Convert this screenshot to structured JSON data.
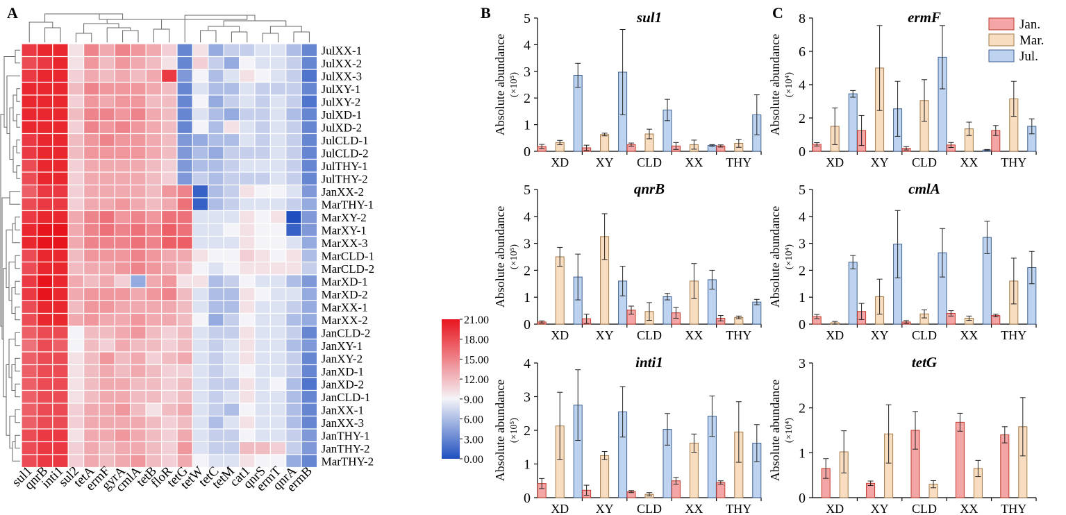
{
  "panel_labels": {
    "a": "A",
    "b": "B",
    "c": "C"
  },
  "colors": {
    "jan_fill": "#f4a6a6",
    "mar_fill": "#f9ddc0",
    "jul_fill": "#bdd3ef",
    "heat_low": "#1f4fbf",
    "heat_mid": "#f4f4f8",
    "heat_high": "#e8141d"
  },
  "legend": [
    "Jan.",
    "Mar.",
    "Jul."
  ],
  "chart_data": [
    {
      "type": "heatmap",
      "panel": "A",
      "columns": [
        "sul1",
        "qnrB",
        "inti1",
        "sul2",
        "tetA",
        "ermF",
        "gyrA",
        "cmlA",
        "tetB",
        "floR",
        "tetG",
        "tetW",
        "tetC",
        "tetM",
        "cat1",
        "qnrS",
        "ermT",
        "qnrA",
        "ermB"
      ],
      "rows": [
        "JulXX-1",
        "JulXX-2",
        "JulXX-3",
        "JulXY-1",
        "JulXY-2",
        "JulXD-1",
        "JulXD-2",
        "JulCLD-1",
        "JulCLD-2",
        "JulTHY-1",
        "JulTHY-2",
        "JanXX-2",
        "MarTHY-1",
        "MarXY-2",
        "MarXY-1",
        "MarXX-3",
        "MarCLD-1",
        "MarCLD-2",
        "MarXD-1",
        "MarXD-2",
        "MarXX-1",
        "MarXX-2",
        "JanCLD-2",
        "JanXY-1",
        "JanXY-2",
        "JanXD-1",
        "JanXD-2",
        "JanCLD-1",
        "JanXX-1",
        "JanXX-3",
        "JanTHY-1",
        "JanTHY-2",
        "MarTHY-2"
      ],
      "values": [
        [
          19,
          20,
          20,
          10,
          15,
          13,
          15,
          14,
          13,
          11,
          3,
          10,
          5,
          7,
          7,
          8,
          8,
          6,
          3
        ],
        [
          18,
          19,
          20,
          10,
          14,
          12,
          14,
          13,
          12,
          10,
          3,
          11,
          7,
          5,
          9,
          8,
          8,
          7,
          3
        ],
        [
          19,
          20,
          20,
          11,
          13,
          12,
          13,
          12,
          13,
          19,
          4,
          9,
          6,
          8,
          10,
          9,
          8,
          7,
          2
        ],
        [
          20,
          20,
          20,
          12,
          15,
          14,
          14,
          14,
          13,
          12,
          3,
          8,
          6,
          6,
          8,
          7,
          7,
          7,
          3
        ],
        [
          20,
          20,
          20,
          11,
          14,
          13,
          14,
          14,
          12,
          12,
          3,
          9,
          5,
          7,
          8,
          7,
          8,
          7,
          2
        ],
        [
          20,
          20,
          20,
          12,
          15,
          15,
          14,
          15,
          13,
          12,
          3,
          8,
          6,
          5,
          7,
          7,
          8,
          6,
          3
        ],
        [
          20,
          20,
          20,
          11,
          15,
          14,
          15,
          14,
          13,
          12,
          3,
          9,
          6,
          10,
          8,
          7,
          8,
          7,
          3
        ],
        [
          19,
          20,
          20,
          12,
          14,
          15,
          14,
          14,
          13,
          12,
          4,
          5,
          6,
          6,
          8,
          7,
          8,
          7,
          3
        ],
        [
          19,
          20,
          20,
          12,
          14,
          14,
          14,
          14,
          13,
          12,
          4,
          6,
          5,
          7,
          7,
          7,
          8,
          7,
          3
        ],
        [
          18,
          20,
          20,
          11,
          13,
          13,
          13,
          13,
          12,
          11,
          4,
          6,
          6,
          7,
          8,
          8,
          8,
          7,
          3
        ],
        [
          18,
          20,
          20,
          11,
          13,
          13,
          13,
          13,
          12,
          11,
          4,
          7,
          6,
          7,
          7,
          7,
          8,
          7,
          3
        ],
        [
          17,
          19,
          19,
          11,
          13,
          13,
          13,
          13,
          12,
          14,
          15,
          1,
          6,
          7,
          10,
          9,
          9,
          8,
          4
        ],
        [
          18,
          19,
          19,
          11,
          13,
          13,
          14,
          13,
          12,
          13,
          16,
          1,
          6,
          7,
          8,
          8,
          8,
          7,
          5
        ],
        [
          19,
          20,
          20,
          13,
          15,
          16,
          14,
          15,
          14,
          16,
          16,
          8,
          8,
          8,
          10,
          9,
          10,
          0,
          4
        ],
        [
          20,
          21,
          21,
          13,
          15,
          16,
          15,
          16,
          15,
          17,
          16,
          8,
          8,
          9,
          10,
          9,
          9,
          1,
          4
        ],
        [
          20,
          21,
          21,
          13,
          15,
          15,
          15,
          16,
          15,
          17,
          17,
          8,
          8,
          8,
          10,
          9,
          9,
          8,
          5
        ],
        [
          18,
          20,
          20,
          12,
          14,
          14,
          14,
          15,
          14,
          13,
          13,
          10,
          9,
          9,
          11,
          10,
          9,
          10,
          6
        ],
        [
          18,
          20,
          20,
          12,
          13,
          13,
          14,
          15,
          14,
          13,
          12,
          9,
          8,
          9,
          10,
          10,
          10,
          10,
          7
        ],
        [
          19,
          21,
          20,
          13,
          12,
          13,
          11,
          5,
          13,
          14,
          10,
          10,
          6,
          7,
          9,
          8,
          8,
          6,
          4
        ],
        [
          19,
          21,
          20,
          13,
          14,
          14,
          14,
          13,
          14,
          15,
          12,
          8,
          6,
          6,
          10,
          9,
          8,
          8,
          5
        ],
        [
          18,
          20,
          20,
          12,
          14,
          14,
          13,
          13,
          13,
          13,
          12,
          8,
          6,
          6,
          10,
          8,
          8,
          7,
          5
        ],
        [
          18,
          20,
          20,
          13,
          14,
          13,
          13,
          14,
          13,
          13,
          12,
          9,
          5,
          7,
          9,
          8,
          8,
          6,
          5
        ],
        [
          17,
          18,
          18,
          9,
          12,
          12,
          13,
          14,
          12,
          11,
          12,
          8,
          7,
          7,
          10,
          8,
          8,
          7,
          3
        ],
        [
          16,
          18,
          17,
          9,
          12,
          11,
          13,
          12,
          12,
          11,
          12,
          8,
          7,
          8,
          10,
          8,
          8,
          6,
          4
        ],
        [
          17,
          18,
          18,
          10,
          12,
          14,
          12,
          13,
          11,
          12,
          13,
          8,
          7,
          8,
          10,
          8,
          8,
          7,
          3
        ],
        [
          17,
          18,
          18,
          10,
          12,
          13,
          12,
          13,
          12,
          11,
          11,
          8,
          7,
          8,
          9,
          8,
          8,
          7,
          3
        ],
        [
          17,
          18,
          18,
          10,
          12,
          13,
          13,
          12,
          12,
          11,
          12,
          8,
          7,
          7,
          10,
          8,
          9,
          6,
          2
        ],
        [
          17,
          18,
          18,
          10,
          12,
          13,
          13,
          12,
          12,
          11,
          12,
          8,
          7,
          8,
          10,
          8,
          8,
          6,
          3
        ],
        [
          17,
          18,
          18,
          11,
          13,
          13,
          14,
          12,
          10,
          12,
          13,
          8,
          7,
          6,
          9,
          8,
          8,
          6,
          3
        ],
        [
          17,
          18,
          18,
          11,
          13,
          13,
          13,
          13,
          12,
          11,
          12,
          8,
          6,
          8,
          10,
          8,
          8,
          6,
          3
        ],
        [
          18,
          19,
          19,
          10,
          13,
          13,
          14,
          13,
          12,
          11,
          13,
          8,
          7,
          7,
          9,
          8,
          8,
          7,
          4
        ],
        [
          18,
          19,
          19,
          11,
          13,
          12,
          13,
          13,
          12,
          11,
          14,
          8,
          7,
          7,
          12,
          12,
          11,
          7,
          4
        ],
        [
          18,
          19,
          19,
          11,
          13,
          12,
          13,
          14,
          12,
          11,
          13,
          9,
          8,
          8,
          10,
          9,
          9,
          5,
          3
        ]
      ],
      "colorbar": {
        "min": 0,
        "max": 21,
        "ticks": [
          "21.00",
          "18.00",
          "15.00",
          "12.00",
          "9.00",
          "6.00",
          "3.00",
          "0.00"
        ]
      }
    },
    {
      "type": "bar",
      "panel": "B",
      "gene": "sul1",
      "categories": [
        "XD",
        "XY",
        "CLD",
        "XX",
        "THY"
      ],
      "ylabel": "Absolute abundance",
      "unit": "(×10⁵)",
      "ylim": [
        0,
        5
      ],
      "yticks": [
        "0",
        "1",
        "2",
        "3",
        "4",
        "5"
      ],
      "series": [
        {
          "name": "Jan.",
          "values": [
            0.18,
            0.13,
            0.25,
            0.2,
            0.2
          ],
          "errors": [
            0.08,
            0.1,
            0.06,
            0.13,
            0.04
          ]
        },
        {
          "name": "Mar.",
          "values": [
            0.33,
            0.63,
            0.65,
            0.25,
            0.3
          ],
          "errors": [
            0.08,
            0.05,
            0.18,
            0.17,
            0.15
          ]
        },
        {
          "name": "Jul.",
          "values": [
            2.85,
            2.97,
            1.55,
            0.22,
            1.37
          ],
          "errors": [
            0.45,
            1.6,
            0.4,
            0.03,
            0.75
          ]
        }
      ]
    },
    {
      "type": "bar",
      "panel": "C",
      "gene": "ermF",
      "categories": [
        "XD",
        "XY",
        "CLD",
        "XX",
        "THY"
      ],
      "ylabel": "Absolute abundance",
      "unit": "(×10⁴)",
      "ylim": [
        0,
        8
      ],
      "yticks": [
        "0",
        "2",
        "4",
        "6",
        "8"
      ],
      "series": [
        {
          "name": "Jan.",
          "values": [
            0.42,
            1.25,
            0.18,
            0.38,
            1.25
          ],
          "errors": [
            0.1,
            0.9,
            0.1,
            0.15,
            0.3
          ]
        },
        {
          "name": "Mar.",
          "values": [
            1.5,
            5.0,
            3.05,
            1.35,
            3.15
          ],
          "errors": [
            1.1,
            2.55,
            1.25,
            0.4,
            1.05
          ]
        },
        {
          "name": "Jul.",
          "values": [
            3.45,
            2.55,
            5.65,
            0.08,
            1.5
          ],
          "errors": [
            0.2,
            1.65,
            1.9,
            0.03,
            0.45
          ]
        }
      ]
    },
    {
      "type": "bar",
      "panel": "B",
      "gene": "qnrB",
      "categories": [
        "XD",
        "XY",
        "CLD",
        "XX",
        "THY"
      ],
      "ylabel": "Absolute abundance",
      "unit": "(×10⁵)",
      "ylim": [
        0,
        5
      ],
      "yticks": [
        "0",
        "1",
        "2",
        "3",
        "4",
        "5"
      ],
      "series": [
        {
          "name": "Jan.",
          "values": [
            0.08,
            0.2,
            0.52,
            0.42,
            0.22
          ],
          "errors": [
            0.04,
            0.17,
            0.15,
            0.2,
            0.1
          ]
        },
        {
          "name": "Mar.",
          "values": [
            2.5,
            3.25,
            0.47,
            1.6,
            0.25
          ],
          "errors": [
            0.35,
            0.85,
            0.33,
            0.65,
            0.05
          ]
        },
        {
          "name": "Jul.",
          "values": [
            1.75,
            1.6,
            1.02,
            1.65,
            0.82
          ],
          "errors": [
            0.85,
            0.55,
            0.12,
            0.35,
            0.1
          ]
        }
      ]
    },
    {
      "type": "bar",
      "panel": "C",
      "gene": "cmlA",
      "categories": [
        "XD",
        "XY",
        "CLD",
        "XX",
        "THY"
      ],
      "ylabel": "Absolute abundance",
      "unit": "(×10⁴)",
      "ylim": [
        0,
        5
      ],
      "yticks": [
        "0",
        "1",
        "2",
        "3",
        "4",
        "5"
      ],
      "series": [
        {
          "name": "Jan.",
          "values": [
            0.28,
            0.47,
            0.08,
            0.4,
            0.32
          ],
          "errors": [
            0.08,
            0.3,
            0.05,
            0.1,
            0.05
          ]
        },
        {
          "name": "Mar.",
          "values": [
            0.05,
            1.02,
            0.38,
            0.22,
            1.6
          ],
          "errors": [
            0.05,
            0.65,
            0.15,
            0.08,
            0.85
          ]
        },
        {
          "name": "Jul.",
          "values": [
            2.3,
            2.97,
            2.65,
            3.22,
            2.1
          ],
          "errors": [
            0.25,
            1.25,
            0.9,
            0.6,
            0.6
          ]
        }
      ]
    },
    {
      "type": "bar",
      "panel": "B",
      "gene": "inti1",
      "categories": [
        "XD",
        "XY",
        "CLD",
        "XX",
        "THY"
      ],
      "ylabel": "Absolute abundance",
      "unit": "(×10⁵)",
      "ylim": [
        0,
        4
      ],
      "yticks": [
        "0",
        "1",
        "2",
        "3",
        "4"
      ],
      "series": [
        {
          "name": "Jan.",
          "values": [
            0.42,
            0.22,
            0.18,
            0.5,
            0.45
          ],
          "errors": [
            0.15,
            0.15,
            0.03,
            0.1,
            0.05
          ]
        },
        {
          "name": "Mar.",
          "values": [
            2.13,
            1.25,
            0.1,
            1.62,
            1.95
          ],
          "errors": [
            1.0,
            0.12,
            0.05,
            0.27,
            0.9
          ]
        },
        {
          "name": "Jul.",
          "values": [
            2.75,
            2.55,
            2.03,
            2.42,
            1.62
          ],
          "errors": [
            1.05,
            0.75,
            0.47,
            0.6,
            0.55
          ]
        }
      ]
    },
    {
      "type": "bar",
      "panel": "C",
      "gene": "tetG",
      "categories": [
        "XD",
        "XY",
        "CLD",
        "XX",
        "THY"
      ],
      "ylabel": "Absolute abundance",
      "unit": "(×10⁴)",
      "ylim": [
        0,
        3
      ],
      "yticks": [
        "0",
        "1",
        "2",
        "3"
      ],
      "series": [
        {
          "name": "Jan.",
          "values": [
            0.65,
            0.32,
            1.5,
            1.68,
            1.4
          ],
          "errors": [
            0.22,
            0.05,
            0.42,
            0.2,
            0.18
          ]
        },
        {
          "name": "Mar.",
          "values": [
            1.02,
            1.42,
            0.3,
            0.65,
            1.58
          ],
          "errors": [
            0.47,
            0.65,
            0.08,
            0.18,
            0.65
          ]
        }
      ]
    }
  ]
}
